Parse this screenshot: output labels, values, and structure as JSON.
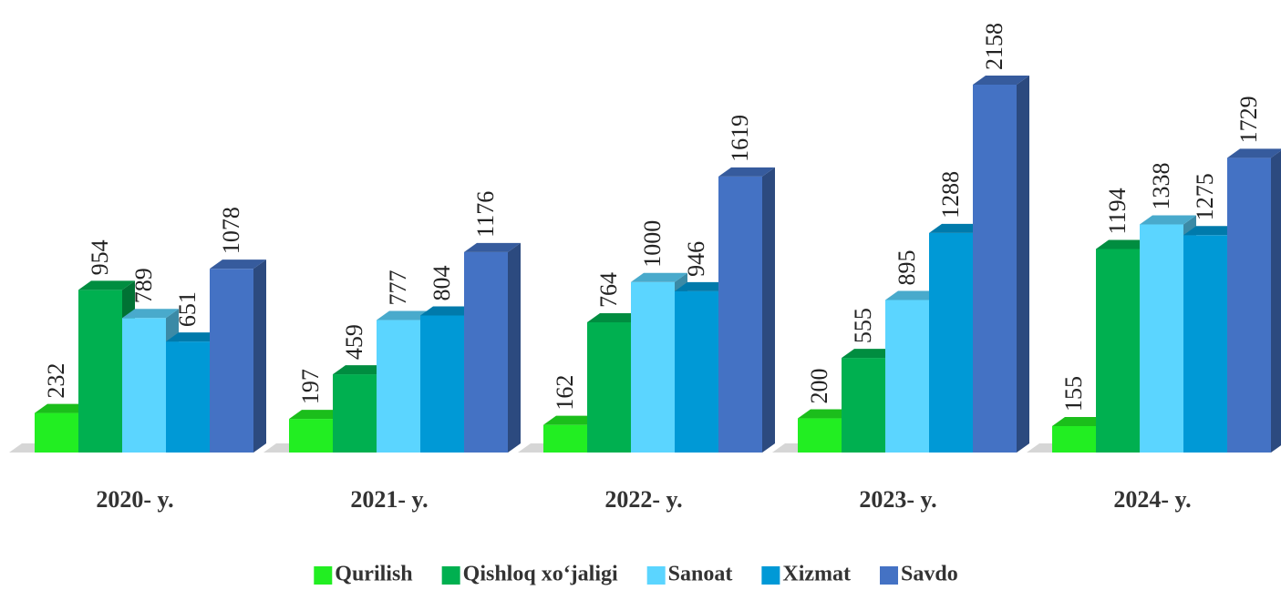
{
  "chart_data": {
    "type": "bar3d",
    "categories": [
      "2020- y.",
      "2021- y.",
      "2022- y.",
      "2023- y.",
      "2024- y."
    ],
    "series": [
      {
        "name": "Qurilish",
        "color": "#22ee22",
        "values": [
          232,
          197,
          162,
          200,
          155
        ]
      },
      {
        "name": "Qishloq xo‘jaligi",
        "color": "#00b050",
        "values": [
          954,
          459,
          764,
          555,
          1194
        ]
      },
      {
        "name": "Sanoat",
        "color": "#5bd5ff",
        "values": [
          789,
          777,
          1000,
          895,
          1338
        ]
      },
      {
        "name": "Xizmat",
        "color": "#0099d6",
        "values": [
          651,
          804,
          946,
          1288,
          1275
        ]
      },
      {
        "name": "Savdo",
        "color": "#4472c4",
        "values": [
          1078,
          1176,
          1619,
          2158,
          1729
        ]
      }
    ],
    "legend": "bottom"
  }
}
